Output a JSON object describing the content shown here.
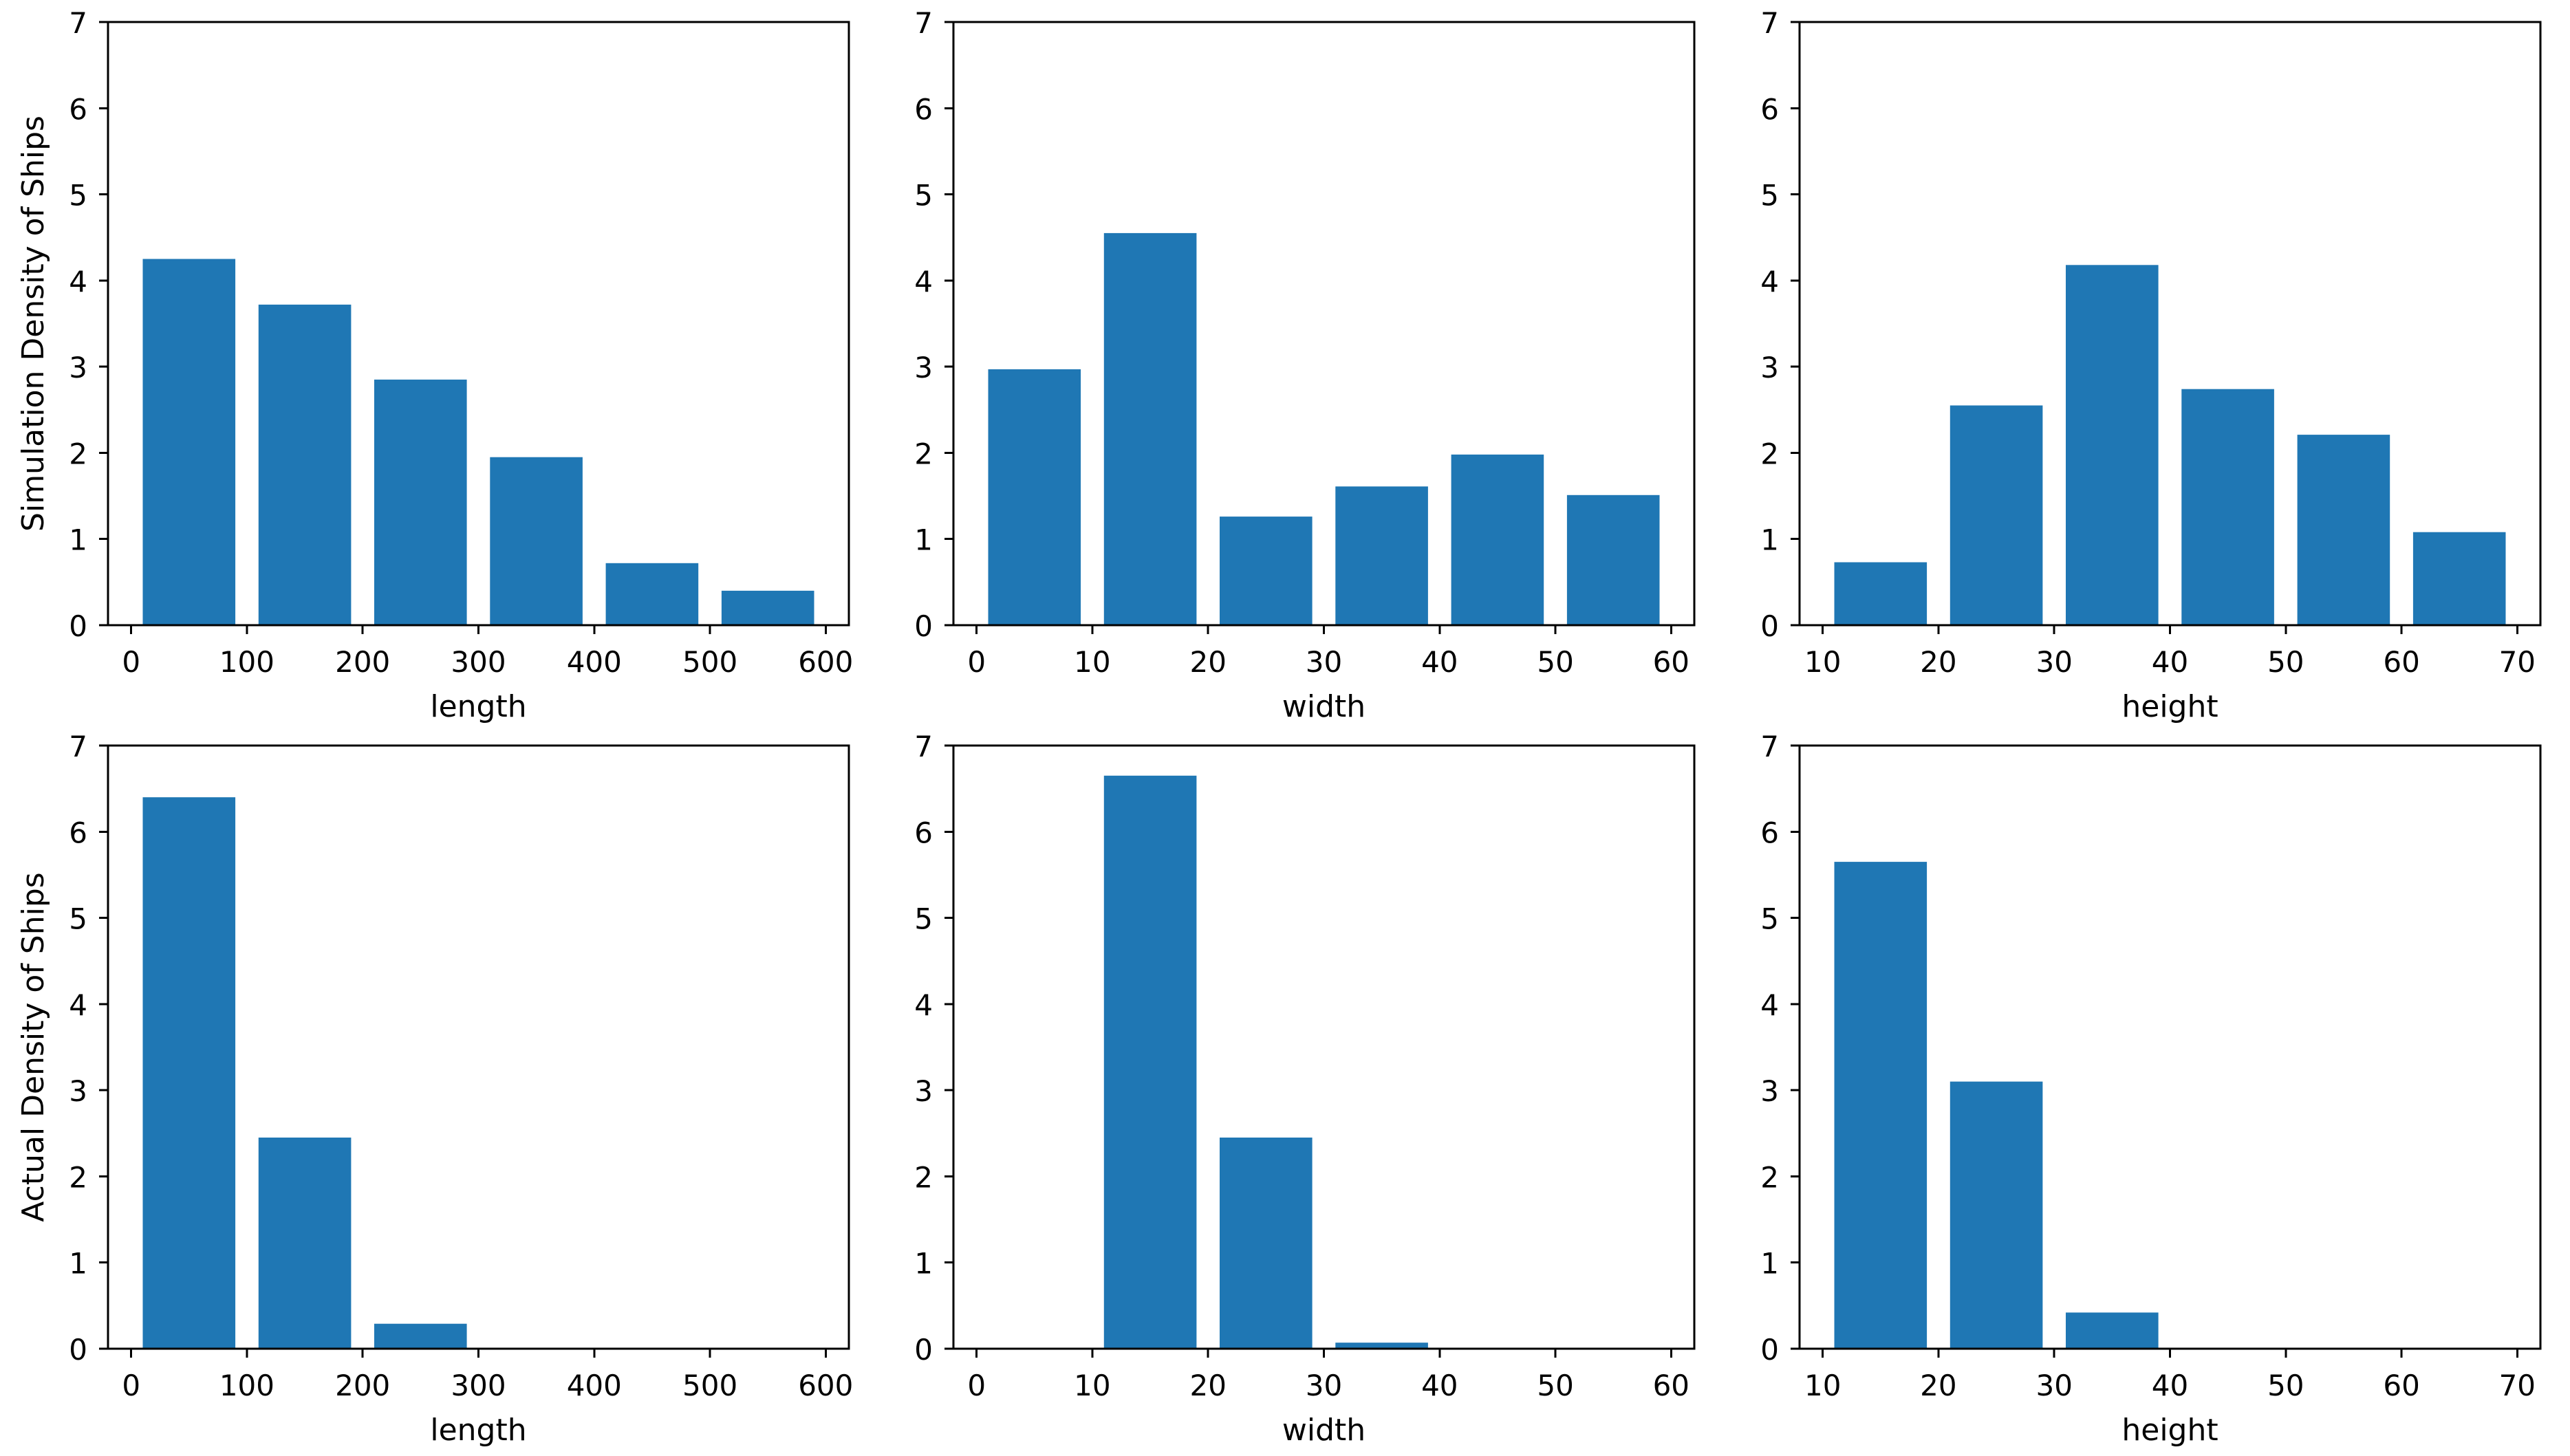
{
  "figure": {
    "background": "#ffffff",
    "bar_color": "#1f77b4",
    "axis_color": "#000000",
    "text_color": "#000000",
    "rows": [
      {
        "ylabel": "Simulation Density of Ships"
      },
      {
        "ylabel": "Actual Density of Ships"
      }
    ],
    "columns": [
      {
        "xlabel": "length"
      },
      {
        "xlabel": "width"
      },
      {
        "xlabel": "height"
      }
    ]
  },
  "chart_data": [
    {
      "type": "bar",
      "subtype": "histogram",
      "name": "simulation-length",
      "title": "",
      "xlabel": "length",
      "ylabel": "Simulation Density of Ships",
      "bin_edges": [
        0,
        100,
        200,
        300,
        400,
        500,
        600
      ],
      "values": [
        4.25,
        3.72,
        2.85,
        1.95,
        0.72,
        0.4
      ],
      "bar_width_fraction": 0.8,
      "xlim": [
        -20,
        620
      ],
      "ylim": [
        0,
        7
      ],
      "xticks": [
        0,
        100,
        200,
        300,
        400,
        500,
        600
      ],
      "yticks": [
        0,
        1,
        2,
        3,
        4,
        5,
        6,
        7
      ],
      "grid": false,
      "legend": "none"
    },
    {
      "type": "bar",
      "subtype": "histogram",
      "name": "simulation-width",
      "title": "",
      "xlabel": "width",
      "ylabel": "",
      "bin_edges": [
        0,
        10,
        20,
        30,
        40,
        50,
        60
      ],
      "values": [
        2.97,
        4.55,
        1.26,
        1.61,
        1.98,
        1.51
      ],
      "bar_width_fraction": 0.8,
      "xlim": [
        -2,
        62
      ],
      "ylim": [
        0,
        7
      ],
      "xticks": [
        0,
        10,
        20,
        30,
        40,
        50,
        60
      ],
      "yticks": [
        0,
        1,
        2,
        3,
        4,
        5,
        6,
        7
      ],
      "grid": false,
      "legend": "none"
    },
    {
      "type": "bar",
      "subtype": "histogram",
      "name": "simulation-height",
      "title": "",
      "xlabel": "height",
      "ylabel": "",
      "bin_edges": [
        10,
        20,
        30,
        40,
        50,
        60,
        70
      ],
      "values": [
        0.73,
        2.55,
        4.18,
        2.74,
        2.21,
        1.08
      ],
      "bar_width_fraction": 0.8,
      "xlim": [
        8,
        72
      ],
      "ylim": [
        0,
        7
      ],
      "xticks": [
        10,
        20,
        30,
        40,
        50,
        60,
        70
      ],
      "yticks": [
        0,
        1,
        2,
        3,
        4,
        5,
        6,
        7
      ],
      "grid": false,
      "legend": "none"
    },
    {
      "type": "bar",
      "subtype": "histogram",
      "name": "actual-length",
      "title": "",
      "xlabel": "length",
      "ylabel": "Actual Density of Ships",
      "bin_edges": [
        0,
        100,
        200,
        300,
        400,
        500,
        600
      ],
      "values": [
        6.4,
        2.45,
        0.29,
        0,
        0,
        0
      ],
      "bar_width_fraction": 0.8,
      "xlim": [
        -20,
        620
      ],
      "ylim": [
        0,
        7
      ],
      "xticks": [
        0,
        100,
        200,
        300,
        400,
        500,
        600
      ],
      "yticks": [
        0,
        1,
        2,
        3,
        4,
        5,
        6,
        7
      ],
      "grid": false,
      "legend": "none"
    },
    {
      "type": "bar",
      "subtype": "histogram",
      "name": "actual-width",
      "title": "",
      "xlabel": "width",
      "ylabel": "",
      "bin_edges": [
        0,
        10,
        20,
        30,
        40,
        50,
        60
      ],
      "values": [
        0,
        6.65,
        2.45,
        0.07,
        0,
        0
      ],
      "bar_width_fraction": 0.8,
      "xlim": [
        -2,
        62
      ],
      "ylim": [
        0,
        7
      ],
      "xticks": [
        0,
        10,
        20,
        30,
        40,
        50,
        60
      ],
      "yticks": [
        0,
        1,
        2,
        3,
        4,
        5,
        6,
        7
      ],
      "grid": false,
      "legend": "none"
    },
    {
      "type": "bar",
      "subtype": "histogram",
      "name": "actual-height",
      "title": "",
      "xlabel": "height",
      "ylabel": "",
      "bin_edges": [
        10,
        20,
        30,
        40,
        50,
        60,
        70
      ],
      "values": [
        5.65,
        3.1,
        0.42,
        0,
        0,
        0
      ],
      "bar_width_fraction": 0.8,
      "xlim": [
        8,
        72
      ],
      "ylim": [
        0,
        7
      ],
      "xticks": [
        10,
        20,
        30,
        40,
        50,
        60,
        70
      ],
      "yticks": [
        0,
        1,
        2,
        3,
        4,
        5,
        6,
        7
      ],
      "grid": false,
      "legend": "none"
    }
  ]
}
